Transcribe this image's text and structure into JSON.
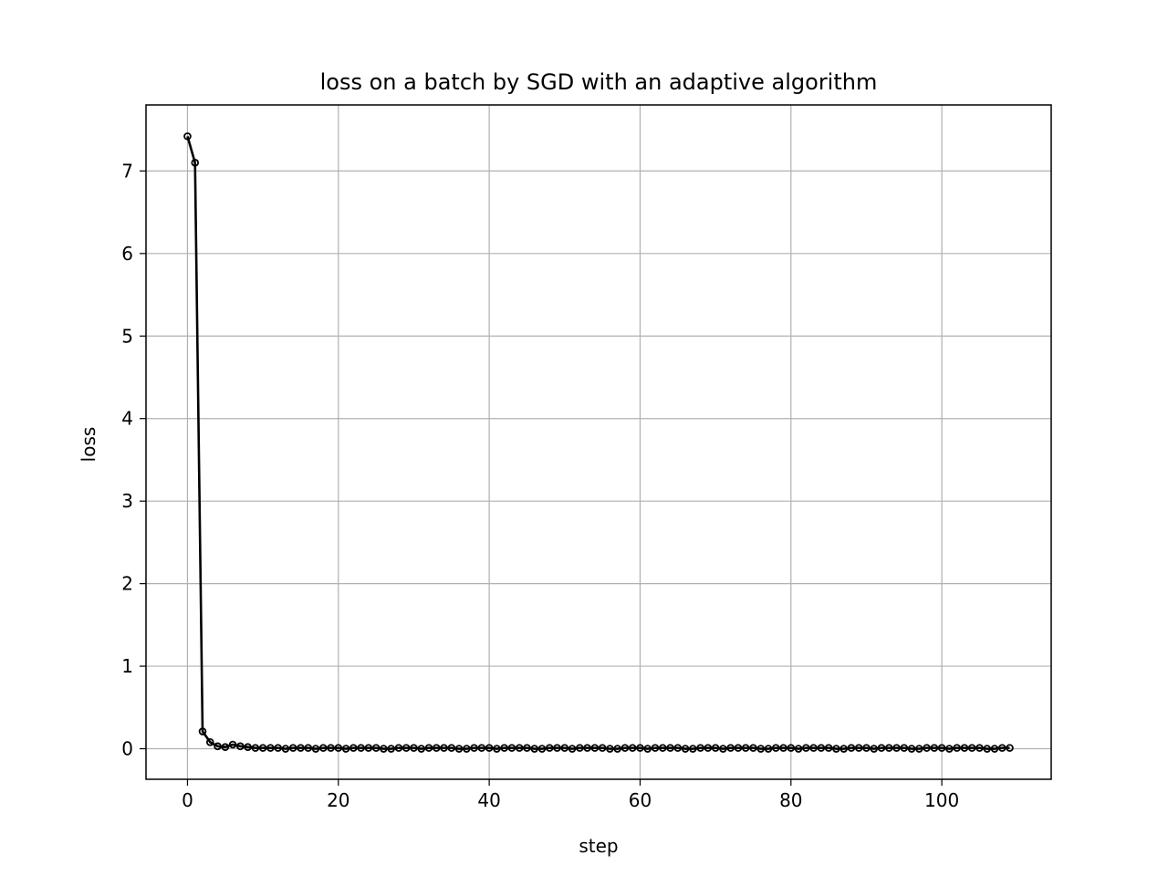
{
  "chart_data": {
    "type": "line",
    "title": "loss on a batch by SGD with an adaptive algorithm",
    "xlabel": "step",
    "ylabel": "loss",
    "xlim": [
      -5.5,
      114.5
    ],
    "ylim": [
      -0.37,
      7.8
    ],
    "xticks": [
      0,
      20,
      40,
      60,
      80,
      100
    ],
    "yticks": [
      0,
      1,
      2,
      3,
      4,
      5,
      6,
      7
    ],
    "grid": true,
    "line_color": "#000000",
    "marker": "circle-open",
    "series": [
      {
        "x": [
          0,
          1,
          2,
          3,
          4,
          5,
          6,
          7,
          8,
          9,
          10,
          11,
          12,
          13,
          14,
          15,
          16,
          17,
          18,
          19,
          20,
          21,
          22,
          23,
          24,
          25,
          26,
          27,
          28,
          29,
          30,
          31,
          32,
          33,
          34,
          35,
          36,
          37,
          38,
          39,
          40,
          41,
          42,
          43,
          44,
          45,
          46,
          47,
          48,
          49,
          50,
          51,
          52,
          53,
          54,
          55,
          56,
          57,
          58,
          59,
          60,
          61,
          62,
          63,
          64,
          65,
          66,
          67,
          68,
          69,
          70,
          71,
          72,
          73,
          74,
          75,
          76,
          77,
          78,
          79,
          80,
          81,
          82,
          83,
          84,
          85,
          86,
          87,
          88,
          89,
          90,
          91,
          92,
          93,
          94,
          95,
          96,
          97,
          98,
          99,
          100,
          101,
          102,
          103,
          104,
          105,
          106,
          107,
          108,
          109
        ],
        "values": [
          7.42,
          7.1,
          0.21,
          0.08,
          0.03,
          0.02,
          0.05,
          0.03,
          0.02,
          0.01,
          0.01,
          0.01,
          0.01,
          0.0,
          0.01,
          0.01,
          0.01,
          0.0,
          0.01,
          0.01,
          0.01,
          0.0,
          0.01,
          0.01,
          0.01,
          0.01,
          0.0,
          0.0,
          0.01,
          0.01,
          0.01,
          0.0,
          0.01,
          0.01,
          0.01,
          0.01,
          0.0,
          0.0,
          0.01,
          0.01,
          0.01,
          0.0,
          0.01,
          0.01,
          0.01,
          0.01,
          0.0,
          0.0,
          0.01,
          0.01,
          0.01,
          0.0,
          0.01,
          0.01,
          0.01,
          0.01,
          0.0,
          0.0,
          0.01,
          0.01,
          0.01,
          0.0,
          0.01,
          0.01,
          0.01,
          0.01,
          0.0,
          0.0,
          0.01,
          0.01,
          0.01,
          0.0,
          0.01,
          0.01,
          0.01,
          0.01,
          0.0,
          0.0,
          0.01,
          0.01,
          0.01,
          0.0,
          0.01,
          0.01,
          0.01,
          0.01,
          0.0,
          0.0,
          0.01,
          0.01,
          0.01,
          0.0,
          0.01,
          0.01,
          0.01,
          0.01,
          0.0,
          0.0,
          0.01,
          0.01,
          0.01,
          0.0,
          0.01,
          0.01,
          0.01,
          0.01,
          0.0,
          0.0,
          0.01,
          0.01
        ]
      }
    ]
  }
}
